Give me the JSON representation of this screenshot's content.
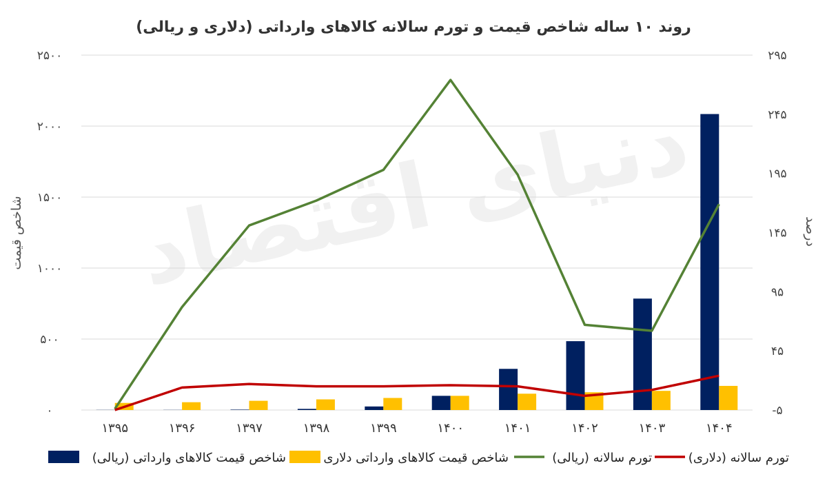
{
  "chart_data": {
    "type": "bar",
    "title": "روند ۱۰ ساله شاخص قیمت و تورم سالانه کالاهای وارداتی (دلاری و ریالی)",
    "watermark": "دنیای اقتصاد",
    "categories": [
      "۱۳۹۵",
      "۱۳۹۶",
      "۱۳۹۷",
      "۱۳۹۸",
      "۱۳۹۹",
      "۱۴۰۰",
      "۱۴۰۱",
      "۱۴۰۲",
      "۱۴۰۳",
      "۱۴۰۴"
    ],
    "y_left": {
      "label": "شاخص قیمت",
      "lim": [
        0,
        2500
      ],
      "ticks": [
        0,
        500,
        1000,
        1500,
        2000,
        2500
      ],
      "tick_labels": [
        "۰",
        "۵۰۰",
        "۱۰۰۰",
        "۱۵۰۰",
        "۲۰۰۰",
        "۲۵۰۰"
      ]
    },
    "y_right": {
      "label": "درصد",
      "lim": [
        -5,
        295
      ],
      "ticks": [
        -5,
        45,
        95,
        145,
        195,
        245,
        295
      ],
      "tick_labels": [
        "-۵",
        "۴۵",
        "۹۵",
        "۱۴۵",
        "۱۹۵",
        "۲۴۵",
        "۲۹۵"
      ]
    },
    "grid": true,
    "legend_position": "bottom",
    "series": [
      {
        "name": "شاخص قیمت کالاهای وارداتی (ریالی)",
        "kind": "bar",
        "axis": "left",
        "color": "#002060",
        "values": [
          1,
          1,
          3,
          8,
          25,
          100,
          290,
          485,
          785,
          2085
        ]
      },
      {
        "name": "شاخص قیمت کالاهای وارداتی دلاری",
        "kind": "bar",
        "axis": "left",
        "color": "#FFC000",
        "values": [
          50,
          55,
          65,
          75,
          85,
          100,
          115,
          125,
          135,
          170
        ]
      },
      {
        "name": "تورم سالانه (ریالی)",
        "kind": "line",
        "axis": "right",
        "color": "#548235",
        "values": [
          -4,
          82,
          151,
          172,
          198,
          274,
          194,
          67,
          62,
          169
        ]
      },
      {
        "name": "تورم سالانه (دلاری)",
        "kind": "line",
        "axis": "right",
        "color": "#C00000",
        "values": [
          -5,
          14,
          17,
          15,
          15,
          16,
          15,
          7,
          12,
          24
        ]
      }
    ]
  }
}
